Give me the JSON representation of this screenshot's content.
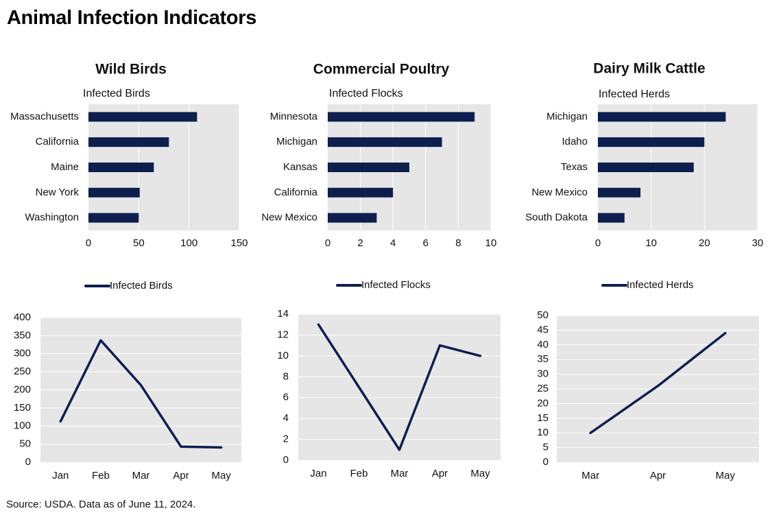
{
  "page": {
    "title": "Animal Infection Indicators",
    "source": "Source: USDA. Data as of June 11, 2024."
  },
  "colors": {
    "series": "#0d1f4f",
    "plot_background": "#e6e6e6",
    "gridline": "#ffffff"
  },
  "chart_data": [
    {
      "type": "bar",
      "orientation": "horizontal",
      "title": "Wild Birds",
      "legend": "Infected Birds",
      "categories": [
        "Massachusetts",
        "California",
        "Maine",
        "New York",
        "Washington"
      ],
      "values": [
        108,
        80,
        65,
        51,
        50
      ],
      "xlim": [
        0,
        150
      ],
      "xticks": [
        0,
        50,
        100,
        150
      ],
      "grid": true
    },
    {
      "type": "bar",
      "orientation": "horizontal",
      "title": "Commercial Poultry",
      "legend": "Infected Flocks",
      "categories": [
        "Minnesota",
        "Michigan",
        "Kansas",
        "California",
        "New Mexico"
      ],
      "values": [
        9,
        7,
        5,
        4,
        3
      ],
      "xlim": [
        0,
        10
      ],
      "xticks": [
        0,
        2,
        4,
        6,
        8,
        10
      ],
      "grid": true
    },
    {
      "type": "bar",
      "orientation": "horizontal",
      "title": "Dairy Milk Cattle",
      "legend": "Infected Herds",
      "categories": [
        "Michigan",
        "Idaho",
        "Texas",
        "New Mexico",
        "South Dakota"
      ],
      "values": [
        24,
        20,
        18,
        8,
        5
      ],
      "xlim": [
        0,
        30
      ],
      "xticks": [
        0,
        10,
        20,
        30
      ],
      "grid": true
    },
    {
      "type": "line",
      "legend": "Infected Birds",
      "legend_position": "top",
      "categories": [
        "Jan",
        "Feb",
        "Mar",
        "Apr",
        "May"
      ],
      "values": [
        113,
        337,
        213,
        43,
        41
      ],
      "ylim": [
        0,
        400
      ],
      "yticks": [
        0,
        50,
        100,
        150,
        200,
        250,
        300,
        350,
        400
      ],
      "grid": true
    },
    {
      "type": "line",
      "legend": "Infected Flocks",
      "legend_position": "top",
      "categories": [
        "Jan",
        "Feb",
        "Mar",
        "Apr",
        "May"
      ],
      "values": [
        13,
        7,
        1,
        11,
        10
      ],
      "ylim": [
        0,
        14
      ],
      "yticks": [
        0,
        2,
        4,
        6,
        8,
        10,
        12,
        14
      ],
      "grid": true
    },
    {
      "type": "line",
      "legend": "Infected Herds",
      "legend_position": "top",
      "categories": [
        "Mar",
        "Apr",
        "May"
      ],
      "values": [
        10,
        26,
        44
      ],
      "ylim": [
        0,
        50
      ],
      "yticks": [
        0,
        5,
        10,
        15,
        20,
        25,
        30,
        35,
        40,
        45,
        50
      ],
      "grid": true
    }
  ]
}
